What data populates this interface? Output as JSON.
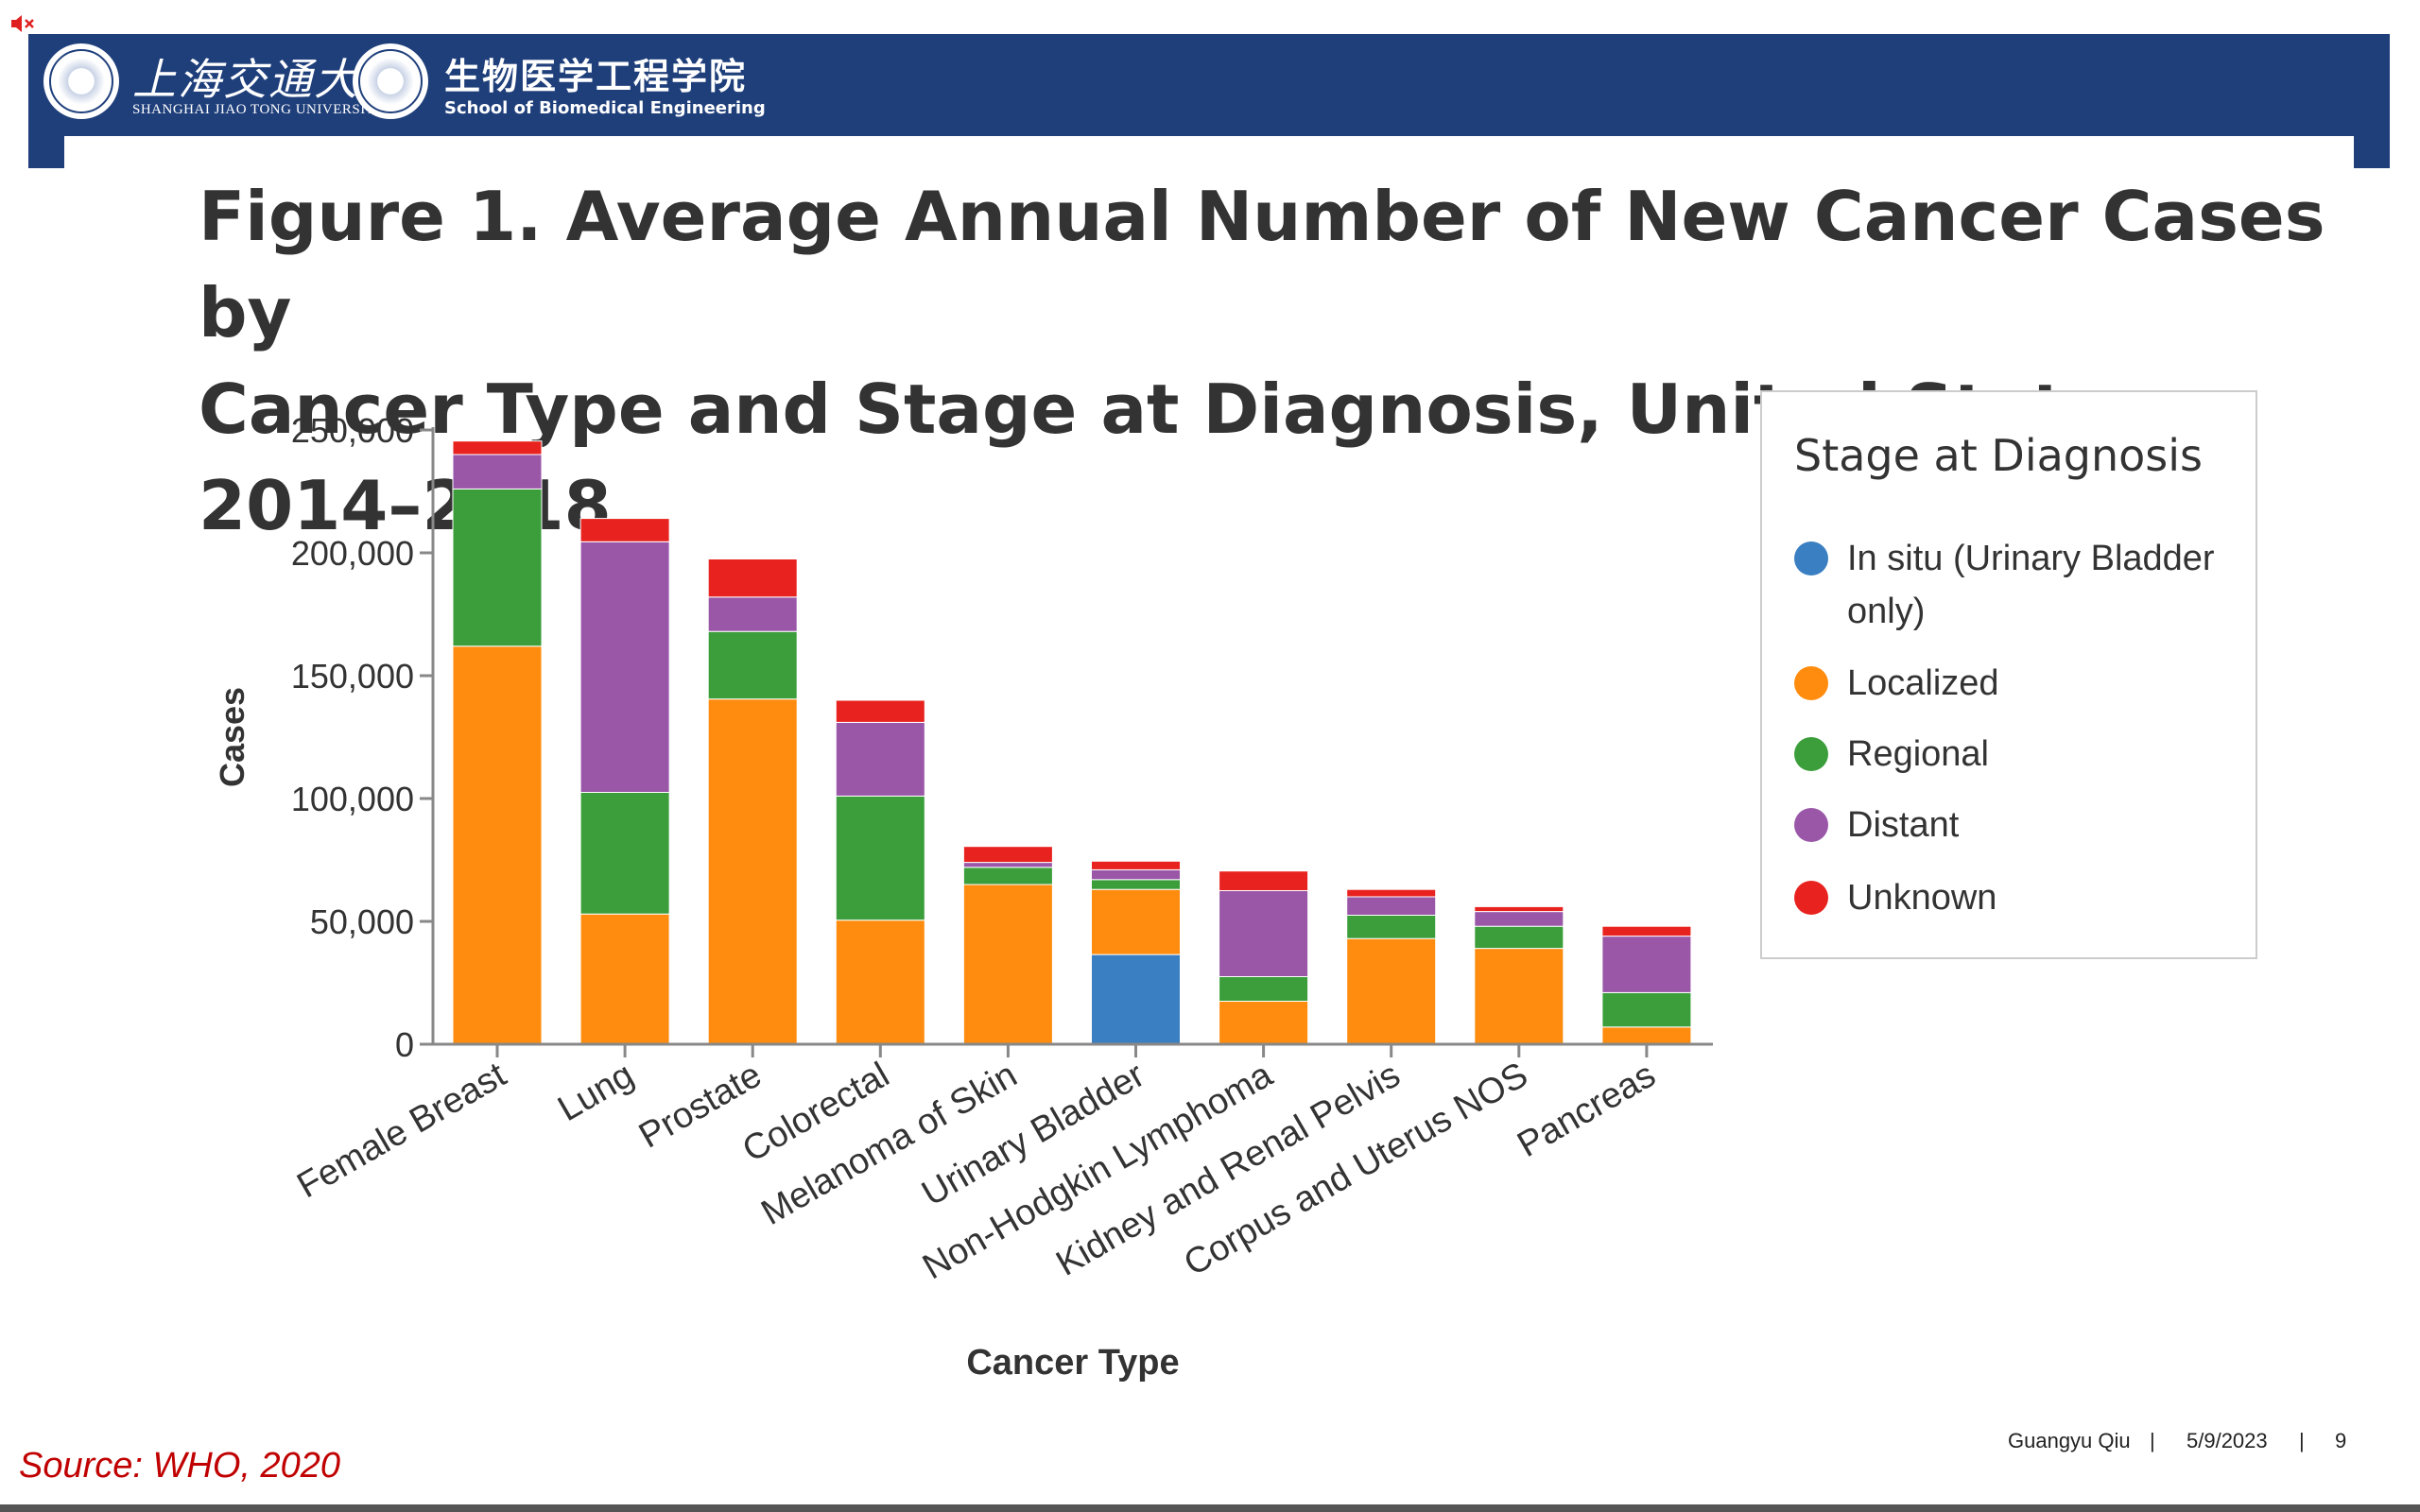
{
  "header": {
    "university_cn": "上海交通大学",
    "university_en": "SHANGHAI JIAO TONG UNIVERSITY",
    "school_cn": "生物医学工程学院",
    "school_en": "School of Biomedical Engineering",
    "brand_color": "#1f3f7b"
  },
  "icons": {
    "mute": "speaker-muted-icon"
  },
  "slide": {
    "title_line1": "Figure 1. Average Annual Number of New Cancer Cases by",
    "title_line2": "Cancer Type and Stage at Diagnosis, United States, 2014–2018",
    "source": "Source: WHO, 2020"
  },
  "footer": {
    "author": "Guangyu Qiu",
    "sep1": "|",
    "date": "5/9/2023",
    "sep2": "|",
    "page": "9"
  },
  "chart_data": {
    "type": "bar",
    "stacked": true,
    "xlabel": "Cancer Type",
    "ylabel": "Cases",
    "ylim": [
      0,
      250000
    ],
    "yticks": [
      0,
      50000,
      100000,
      150000,
      200000,
      250000
    ],
    "ytick_labels": [
      "0",
      "50,000",
      "100,000",
      "150,000",
      "200,000",
      "250,000"
    ],
    "grid": false,
    "legend_title": "Stage at Diagnosis",
    "legend_position": "right",
    "categories": [
      "Female Breast",
      "Lung",
      "Prostate",
      "Colorectal",
      "Melanoma of Skin",
      "Urinary Bladder",
      "Non-Hodgkin Lymphoma",
      "Kidney and Renal Pelvis",
      "Corpus and Uterus NOS",
      "Pancreas"
    ],
    "series": [
      {
        "name": "In situ (Urinary Bladder only)",
        "color": "#3a7fc1",
        "values": [
          0,
          0,
          0,
          0,
          0,
          36500,
          0,
          0,
          0,
          0
        ]
      },
      {
        "name": "Localized",
        "color": "#ff8c0e",
        "values": [
          162000,
          53000,
          140500,
          50500,
          65000,
          26500,
          17500,
          43000,
          39000,
          7000
        ]
      },
      {
        "name": "Regional",
        "color": "#3b9e3b",
        "values": [
          64000,
          49500,
          27500,
          50500,
          7000,
          4000,
          10000,
          9500,
          9000,
          14000
        ]
      },
      {
        "name": "Distant",
        "color": "#9a57a8",
        "values": [
          14000,
          102000,
          14000,
          30000,
          2000,
          4000,
          35000,
          7500,
          6000,
          23000
        ]
      },
      {
        "name": "Unknown",
        "color": "#e8231f",
        "values": [
          5500,
          9500,
          15500,
          9000,
          6500,
          3500,
          8000,
          3000,
          2000,
          4000
        ]
      }
    ]
  }
}
